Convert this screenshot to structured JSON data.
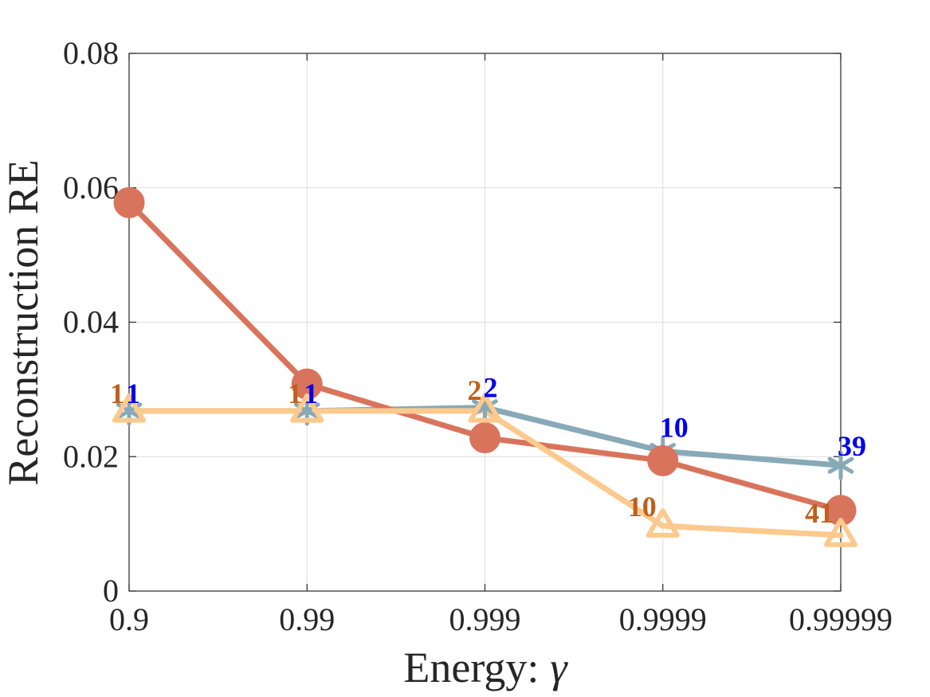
{
  "chart_data": {
    "type": "line",
    "categories": [
      "0.9",
      "0.99",
      "0.999",
      "0.9999",
      "0.99999"
    ],
    "xlabel_text": "Energy:",
    "xlabel_symbol": "γ",
    "ylabel": "Reconstruction RE",
    "ylim": [
      0,
      0.08
    ],
    "yticks": [
      "0",
      "0.02",
      "0.04",
      "0.06",
      "0.08"
    ],
    "ytick_values": [
      0,
      0.02,
      0.04,
      0.06,
      0.08
    ],
    "grid": true,
    "series": [
      {
        "name": "series-blue",
        "color": "#87a9b8",
        "marker": "asterisk",
        "values": [
          0.0268,
          0.0268,
          0.0273,
          0.0208,
          0.0187
        ],
        "labels": [
          "1",
          "1",
          "2",
          "10",
          "39"
        ],
        "label_color": "#0000ee"
      },
      {
        "name": "series-red",
        "color": "#d9745c",
        "marker": "circle",
        "values": [
          0.0578,
          0.0308,
          0.0228,
          0.0194,
          0.012
        ],
        "labels": [],
        "label_color": ""
      },
      {
        "name": "series-orange",
        "color": "#fdc98d",
        "marker": "triangle",
        "values": [
          0.0268,
          0.0268,
          0.0268,
          0.0097,
          0.0083
        ],
        "labels": [
          "1",
          "1",
          "2",
          "10",
          "41"
        ],
        "label_color": "#c0601c"
      }
    ]
  }
}
